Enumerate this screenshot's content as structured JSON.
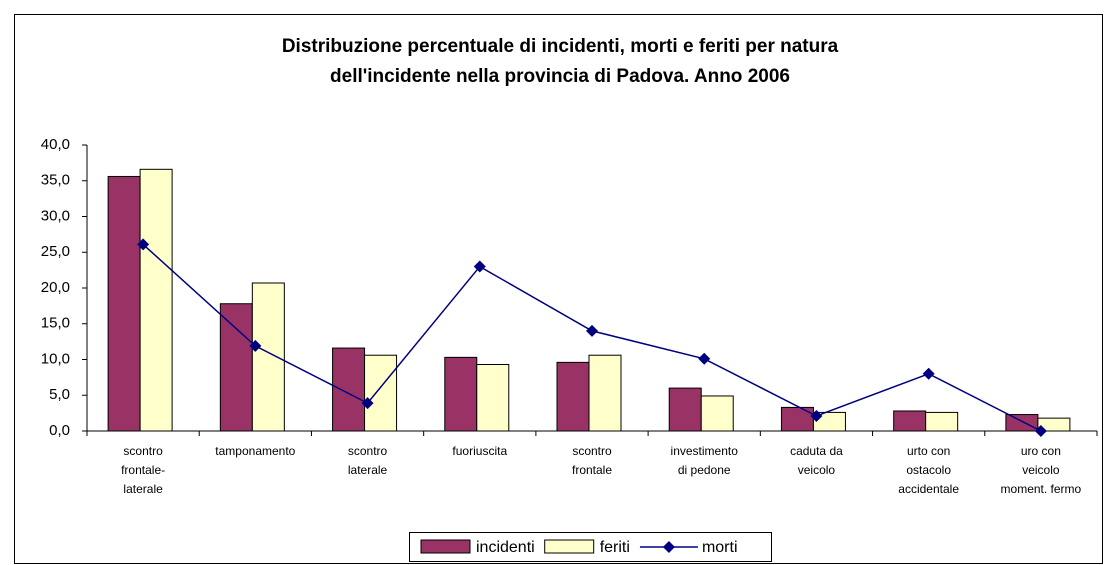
{
  "chart_data": {
    "type": "bar_line",
    "title": [
      "Distribuzione percentuale di incidenti, morti e feriti per natura",
      "dell'incidente nella provincia di Padova. Anno 2006"
    ],
    "categories": [
      [
        "scontro",
        "frontale-",
        "laterale"
      ],
      [
        "tamponamento"
      ],
      [
        "scontro",
        "laterale"
      ],
      [
        "fuoriuscita"
      ],
      [
        "scontro",
        "frontale"
      ],
      [
        "investimento",
        "di pedone"
      ],
      [
        "caduta da",
        "veicolo"
      ],
      [
        "urto con",
        "ostacolo",
        "accidentale"
      ],
      [
        "uro con",
        "veicolo",
        "moment. fermo"
      ]
    ],
    "series": [
      {
        "name": "incidenti",
        "type": "bar",
        "color": "#993366",
        "values": [
          35.6,
          17.8,
          11.6,
          10.3,
          9.6,
          6.0,
          3.3,
          2.8,
          2.3
        ]
      },
      {
        "name": "feriti",
        "type": "bar",
        "color": "#ffffcc",
        "values": [
          36.6,
          20.7,
          10.6,
          9.3,
          10.6,
          4.9,
          2.6,
          2.6,
          1.8
        ]
      },
      {
        "name": "morti",
        "type": "line",
        "color": "#000080",
        "values": [
          26.1,
          11.9,
          3.9,
          23.0,
          14.0,
          10.1,
          2.1,
          8.0,
          0.0
        ]
      }
    ],
    "ylim": [
      0,
      40
    ],
    "yticks": [
      {
        "value": 0,
        "label": "0,0"
      },
      {
        "value": 5,
        "label": "5,0"
      },
      {
        "value": 10,
        "label": "10,0"
      },
      {
        "value": 15,
        "label": "15,0"
      },
      {
        "value": 20,
        "label": "20,0"
      },
      {
        "value": 25,
        "label": "25,0"
      },
      {
        "value": 30,
        "label": "30,0"
      },
      {
        "value": 35,
        "label": "35,0"
      },
      {
        "value": 40,
        "label": "40,0"
      }
    ],
    "legend": "bottom"
  }
}
